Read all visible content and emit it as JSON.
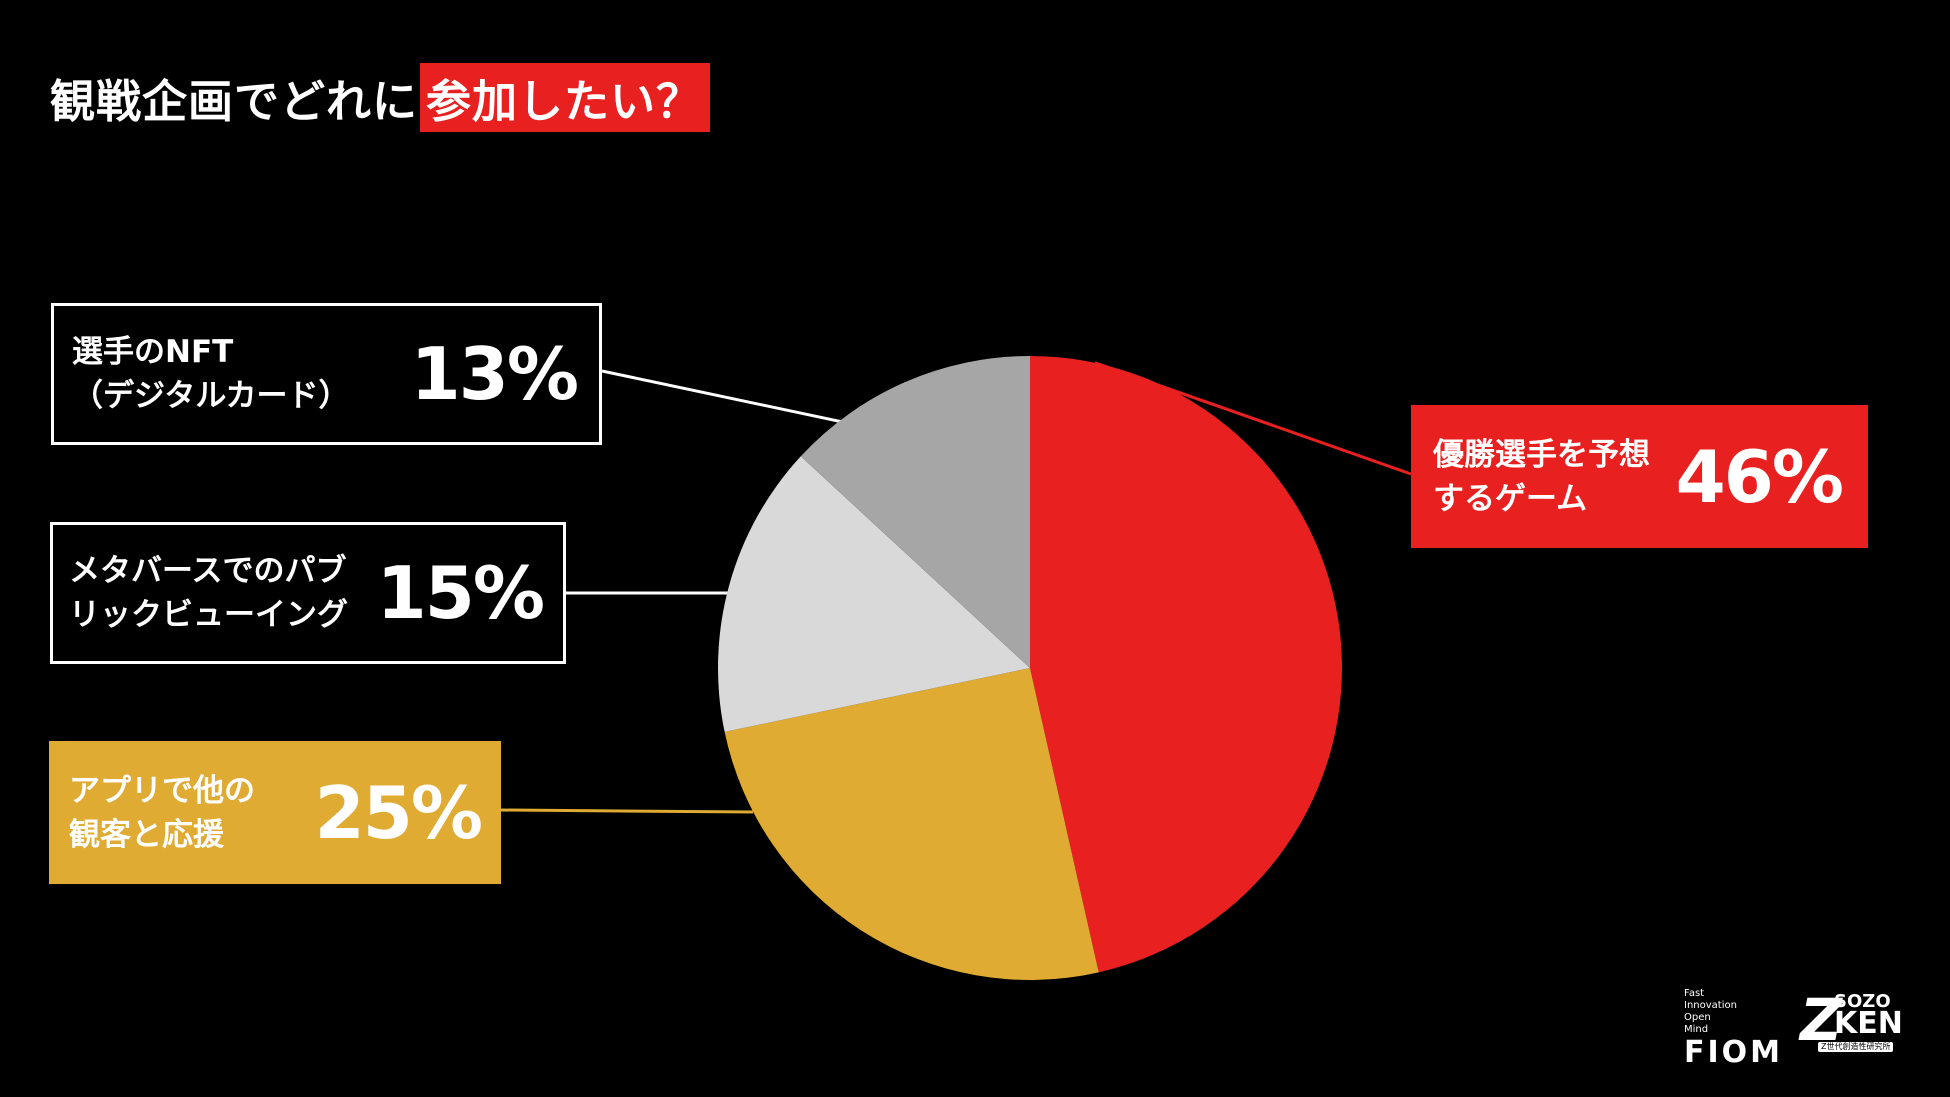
{
  "title": {
    "plain": "観戦企画でどれに",
    "highlight": "参加したい？"
  },
  "colors": {
    "background": "#000000",
    "accent_red": "#e8201f",
    "gold": "#e0ab33",
    "light_gray": "#d9d9d9",
    "mid_gray": "#a6a6a6",
    "white": "#ffffff"
  },
  "chart_data": {
    "type": "pie",
    "title": "観戦企画でどれに参加したい？",
    "start_angle_deg": 0,
    "direction": "clockwise",
    "slices": [
      {
        "label": "優勝選手を予想するゲーム",
        "value": 46,
        "color": "#e8201f"
      },
      {
        "label": "アプリで他の観客と応援",
        "value": 25,
        "color": "#e0ab33"
      },
      {
        "label": "メタバースでのパブリックビューイング",
        "value": 15,
        "color": "#d9d9d9"
      },
      {
        "label": "選手のNFT（デジタルカード）",
        "value": 13,
        "color": "#a6a6a6"
      }
    ],
    "labels": {
      "nft": {
        "desc": "選手のNFT\n（デジタルカード）",
        "pct": "13%"
      },
      "metaverse": {
        "desc": "メタバースでのパブ\nリックビューイング",
        "pct": "15%"
      },
      "app": {
        "desc": "アプリで他の\n観客と応援",
        "pct": "25%"
      },
      "winner": {
        "desc": "優勝選手を予想\nするゲーム",
        "pct": "46%"
      }
    }
  },
  "logos": {
    "fiom": {
      "small_lines": [
        "Fast",
        "Innovation",
        "Open",
        "Mind"
      ],
      "name": "FIOM"
    },
    "zken": {
      "z": "Z",
      "sozo": "SOZO",
      "ken": "KEN",
      "subtitle": "Z世代創造性研究所"
    }
  }
}
